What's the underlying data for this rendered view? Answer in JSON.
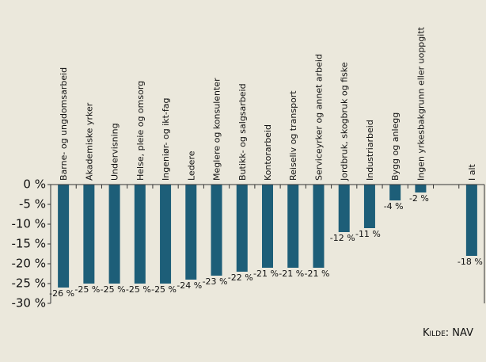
{
  "chart_data": {
    "type": "bar",
    "categories": [
      "Barne- og ungdomsarbeid",
      "Akademiske yrker",
      "Undervisning",
      "Helse, pleie og omsorg",
      "Ingeniør- og ikt-fag",
      "Ledere",
      "Meglere og konsulenter",
      "Butikk- og salgsarbeid",
      "Kontorarbeid",
      "Reiseliv og transport",
      "Serviceyrker og annet arbeid",
      "Jordbruk, skogbruk og fiske",
      "Industriarbeid",
      "Bygg og anlegg",
      "Ingen yrkesbakgrunn eller uoppgitt",
      null,
      "I alt"
    ],
    "values": [
      -26,
      -25,
      -25,
      -25,
      -25,
      -24,
      -23,
      -22,
      -21,
      -21,
      -21,
      -12,
      -11,
      -4,
      -2,
      null,
      -18
    ],
    "value_labels": [
      "-26 %",
      "-25 %",
      "-25 %",
      "-25 %",
      "-25 %",
      "-24 %",
      "-23 %",
      "-22 %",
      "-21 %",
      "-21 %",
      "-21 %",
      "-12 %",
      "-11 %",
      "-4 %",
      "-2 %",
      null,
      "-18 %"
    ],
    "color": "#1d5e78",
    "ylim": [
      -30,
      0
    ],
    "yticks": [
      {
        "value": 0,
        "label": "0 %"
      },
      {
        "value": -5,
        "label": "-5 %"
      },
      {
        "value": -10,
        "label": "-10 %"
      },
      {
        "value": -15,
        "label": "-15 %"
      },
      {
        "value": -20,
        "label": "-20 %"
      },
      {
        "value": -25,
        "label": "-25 %"
      },
      {
        "value": -30,
        "label": "-30 %"
      }
    ],
    "source": "Kilde: NAV"
  }
}
